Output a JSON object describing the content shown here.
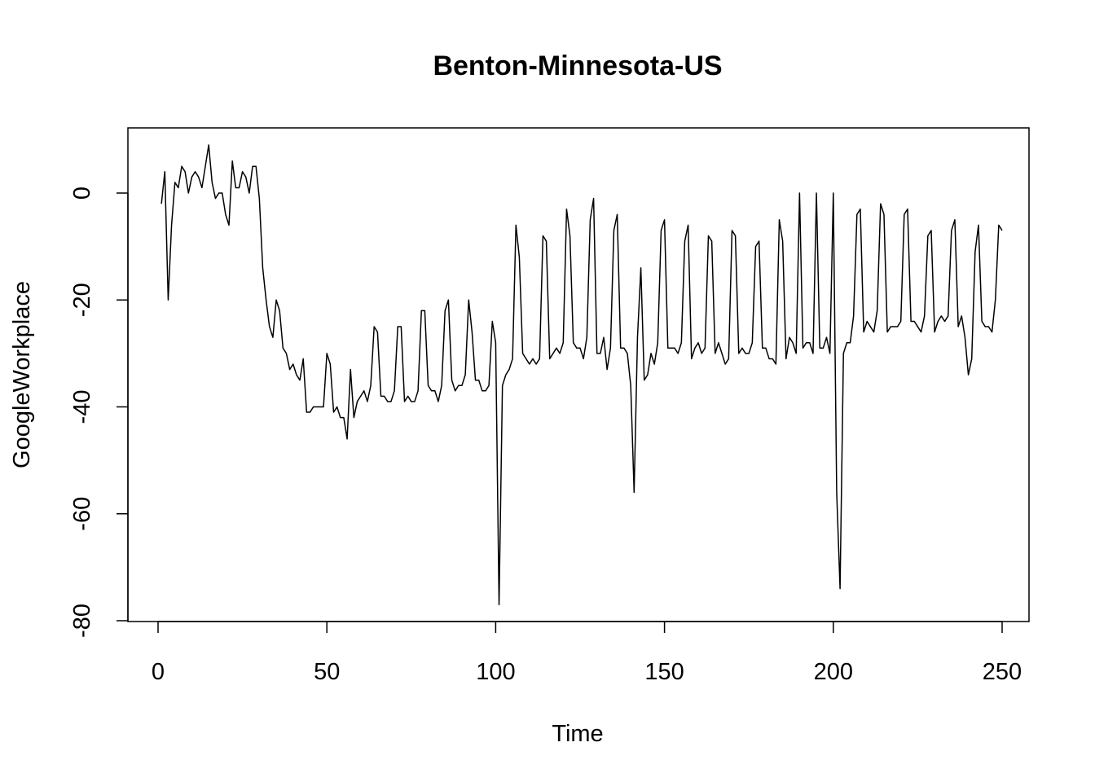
{
  "chart_data": {
    "type": "line",
    "title": "Benton-Minnesota-US",
    "xlabel": "Time",
    "ylabel": "GoogleWorkplace",
    "xlim": [
      0,
      250
    ],
    "ylim": [
      -80,
      5
    ],
    "x_ticks": [
      0,
      50,
      100,
      150,
      200,
      250
    ],
    "y_ticks": [
      -80,
      -60,
      -40,
      -20,
      0
    ],
    "grid": false,
    "legend": "none",
    "x_start": 1,
    "series": [
      {
        "values": [
          -2,
          4,
          -20,
          -6,
          2,
          1,
          5,
          4,
          0,
          3,
          4,
          3,
          1,
          5,
          9,
          2,
          -1,
          0,
          0,
          -4,
          -6,
          6,
          1,
          1,
          4,
          3,
          0,
          5,
          5,
          -1,
          -14,
          -20,
          -25,
          -27,
          -20,
          -22,
          -29,
          -30,
          -33,
          -32,
          -34,
          -35,
          -31,
          -41,
          -41,
          -40,
          -40,
          -40,
          -40,
          -30,
          -32,
          -41,
          -40,
          -42,
          -42,
          -46,
          -33,
          -42,
          -39,
          -38,
          -37,
          -39,
          -36,
          -25,
          -26,
          -38,
          -38,
          -39,
          -39,
          -37,
          -25,
          -25,
          -39,
          -38,
          -39,
          -39,
          -37,
          -22,
          -22,
          -36,
          -37,
          -37,
          -39,
          -36,
          -22,
          -20,
          -35,
          -37,
          -36,
          -36,
          -34,
          -20,
          -26,
          -35,
          -35,
          -37,
          -37,
          -36,
          -24,
          -28,
          -77,
          -36,
          -34,
          -33,
          -31,
          -6,
          -12,
          -30,
          -31,
          -32,
          -31,
          -32,
          -31,
          -8,
          -9,
          -31,
          -30,
          -29,
          -30,
          -28,
          -3,
          -8,
          -28,
          -29,
          -29,
          -31,
          -27,
          -5,
          -1,
          -30,
          -30,
          -27,
          -33,
          -29,
          -7,
          -4,
          -29,
          -29,
          -30,
          -36,
          -56,
          -27,
          -14,
          -35,
          -34,
          -30,
          -32,
          -28,
          -7,
          -5,
          -29,
          -29,
          -29,
          -30,
          -28,
          -9,
          -6,
          -31,
          -29,
          -28,
          -30,
          -29,
          -8,
          -9,
          -30,
          -28,
          -30,
          -32,
          -31,
          -7,
          -8,
          -30,
          -29,
          -30,
          -30,
          -28,
          -10,
          -9,
          -29,
          -29,
          -31,
          -31,
          -32,
          -5,
          -9,
          -31,
          -27,
          -28,
          -30,
          0,
          -29,
          -28,
          -28,
          -30,
          0,
          -29,
          -29,
          -27,
          -30,
          0,
          -56,
          -74,
          -30,
          -28,
          -28,
          -23,
          -4,
          -3,
          -26,
          -24,
          -25,
          -26,
          -22,
          -2,
          -4,
          -26,
          -25,
          -25,
          -25,
          -24,
          -4,
          -3,
          -24,
          -24,
          -25,
          -26,
          -23,
          -8,
          -7,
          -26,
          -24,
          -23,
          -24,
          -23,
          -7,
          -5,
          -25,
          -23,
          -27,
          -34,
          -31,
          -11,
          -6,
          -24,
          -25,
          -25,
          -26,
          -20,
          -6,
          -7
        ]
      }
    ]
  }
}
